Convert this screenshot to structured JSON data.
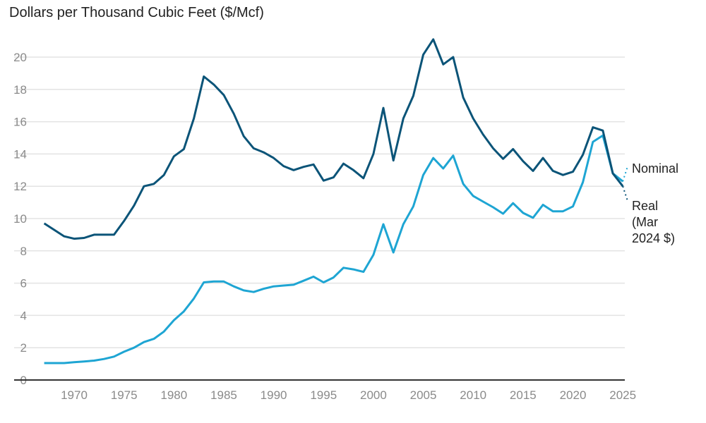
{
  "chart_data": {
    "type": "line",
    "title": "Dollars per Thousand Cubic Feet ($/Mcf)",
    "xlabel": "",
    "ylabel": "",
    "xlim": [
      1967,
      2025
    ],
    "ylim": [
      0,
      21
    ],
    "grid": true,
    "y_ticks": [
      0,
      2,
      4,
      6,
      8,
      10,
      12,
      14,
      16,
      18,
      20
    ],
    "x_ticks": [
      1970,
      1975,
      1980,
      1985,
      1990,
      1995,
      2000,
      2005,
      2010,
      2015,
      2020,
      2025
    ],
    "legend_placement": "direct labels at right end of lines",
    "x": [
      1967,
      1968,
      1969,
      1970,
      1971,
      1972,
      1973,
      1974,
      1975,
      1976,
      1977,
      1978,
      1979,
      1980,
      1981,
      1982,
      1983,
      1984,
      1985,
      1986,
      1987,
      1988,
      1989,
      1990,
      1991,
      1992,
      1993,
      1994,
      1995,
      1996,
      1997,
      1998,
      1999,
      2000,
      2001,
      2002,
      2003,
      2004,
      2005,
      2006,
      2007,
      2008,
      2009,
      2010,
      2011,
      2012,
      2013,
      2014,
      2015,
      2016,
      2017,
      2018,
      2019,
      2020,
      2021,
      2022,
      2023,
      2024,
      2025
    ],
    "series": [
      {
        "name": "Real (Mar 2024 $)",
        "label_lines": [
          "Real",
          "(Mar",
          "2024 $)"
        ],
        "color": "#0b5478",
        "values": [
          9.7,
          9.3,
          8.9,
          8.75,
          8.8,
          9.0,
          9.0,
          9.0,
          9.85,
          10.8,
          12.0,
          12.15,
          12.7,
          13.85,
          14.3,
          16.2,
          18.8,
          18.3,
          17.65,
          16.5,
          15.1,
          14.35,
          14.1,
          13.75,
          13.25,
          13.0,
          13.2,
          13.35,
          12.35,
          12.55,
          13.4,
          13.0,
          12.5,
          14.0,
          16.85,
          13.6,
          16.2,
          17.6,
          20.15,
          21.1,
          19.55,
          20.0,
          17.5,
          16.2,
          15.2,
          14.35,
          13.7,
          14.3,
          13.55,
          12.95,
          13.75,
          12.95,
          12.7,
          12.9,
          13.95,
          15.65,
          15.45,
          12.8,
          12.0
        ]
      },
      {
        "name": "Nominal",
        "label_lines": [
          "Nominal"
        ],
        "color": "#1ea5d3",
        "values": [
          1.05,
          1.05,
          1.05,
          1.1,
          1.15,
          1.2,
          1.3,
          1.45,
          1.75,
          2.0,
          2.35,
          2.55,
          3.0,
          3.7,
          4.25,
          5.05,
          6.05,
          6.1,
          6.1,
          5.8,
          5.55,
          5.45,
          5.65,
          5.8,
          5.85,
          5.9,
          6.15,
          6.4,
          6.05,
          6.35,
          6.95,
          6.85,
          6.7,
          7.75,
          9.65,
          7.9,
          9.65,
          10.75,
          12.7,
          13.75,
          13.1,
          13.9,
          12.15,
          11.4,
          11.05,
          10.7,
          10.3,
          10.95,
          10.35,
          10.05,
          10.85,
          10.45,
          10.45,
          10.75,
          12.25,
          14.75,
          15.15,
          12.8,
          12.3
        ]
      }
    ]
  }
}
